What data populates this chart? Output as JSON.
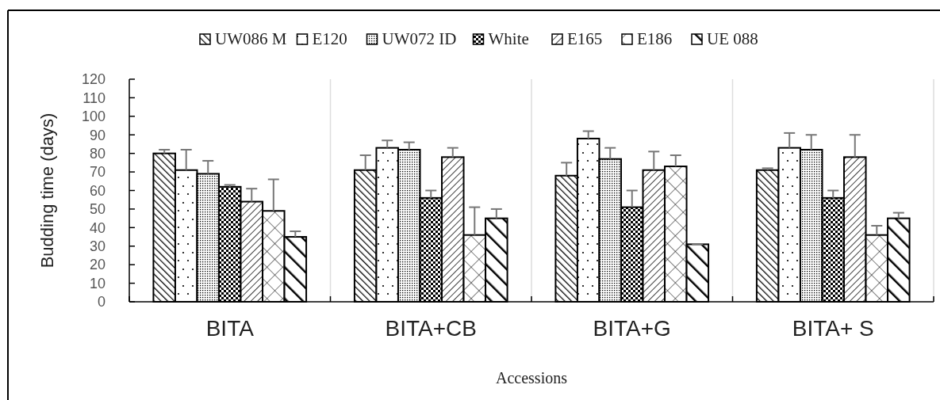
{
  "chart_data": {
    "type": "bar",
    "xlabel": "Accessions",
    "ylabel": "Budding time (days)",
    "categories": [
      "BITA",
      "BITA+CB",
      "BITA+G",
      "BITA+ S"
    ],
    "ylim": [
      0,
      120
    ],
    "yticks": [
      0,
      10,
      20,
      30,
      40,
      50,
      60,
      70,
      80,
      90,
      100,
      110,
      120
    ],
    "grid": false,
    "legend": "top",
    "series": [
      {
        "name": "UW086 M",
        "color": "#000000",
        "values": [
          80,
          71,
          68,
          71
        ],
        "errors": [
          2,
          8,
          7,
          1
        ]
      },
      {
        "name": "E120",
        "color": "#000000",
        "values": [
          71,
          83,
          88,
          83
        ],
        "errors": [
          11,
          4,
          4,
          8
        ]
      },
      {
        "name": "UW072 ID",
        "color": "#000000",
        "values": [
          69,
          82,
          77,
          82
        ],
        "errors": [
          7,
          4,
          6,
          8
        ]
      },
      {
        "name": "White",
        "color": "#000000",
        "values": [
          62,
          56,
          51,
          56
        ],
        "errors": [
          1,
          4,
          9,
          4
        ]
      },
      {
        "name": "E165",
        "color": "#000000",
        "values": [
          54,
          78,
          71,
          78
        ],
        "errors": [
          7,
          5,
          10,
          12
        ]
      },
      {
        "name": "E186",
        "color": "#000000",
        "values": [
          49,
          36,
          73,
          36
        ],
        "errors": [
          17,
          15,
          6,
          5
        ]
      },
      {
        "name": "UE 088",
        "color": "#000000",
        "values": [
          35,
          45,
          31,
          45
        ],
        "errors": [
          3,
          5,
          0,
          3
        ]
      }
    ]
  }
}
